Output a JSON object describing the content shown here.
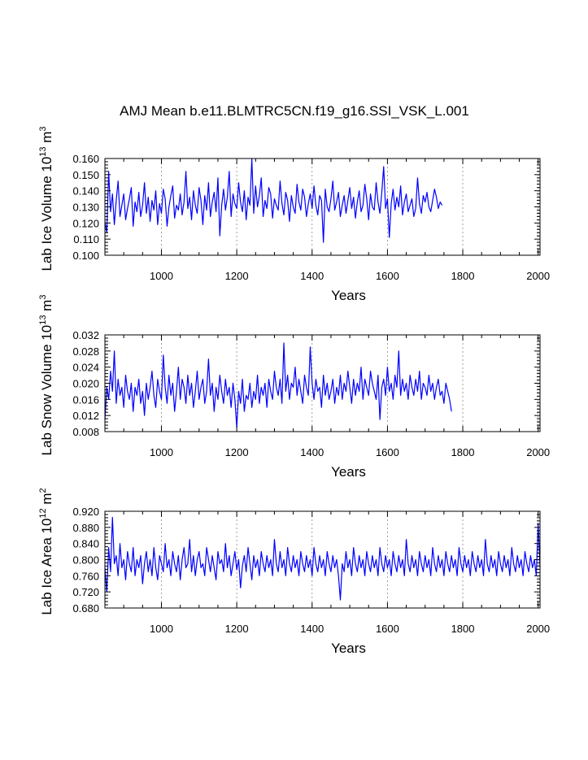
{
  "title": "AMJ Mean b.e11.BLMTRC5CN.f19_g16.SSI_VSK_L.001",
  "line_color": "#0000ff",
  "chart_data": [
    {
      "type": "line",
      "title": "AMJ Mean b.e11.BLMTRC5CN.f19_g16.SSI_VSK_L.001",
      "xlabel": "Years",
      "ylabel": {
        "prefix": "Lab Ice Volume 10",
        "exp": "13",
        "unit": " m",
        "unit_exp": "3"
      },
      "xlim": [
        850,
        2005
      ],
      "ylim": [
        0.1,
        0.16
      ],
      "xticks": [
        "1000",
        "1200",
        "1400",
        "1600",
        "1800",
        "2000"
      ],
      "yticks": [
        "0.100",
        "0.110",
        "0.120",
        "0.130",
        "0.140",
        "0.150",
        "0.160"
      ],
      "grid": "dotted vertical at 200-year intervals",
      "series": [
        {
          "x_start": 850,
          "x_step": 5,
          "values": [
            0.121,
            0.114,
            0.152,
            0.127,
            0.138,
            0.119,
            0.134,
            0.146,
            0.124,
            0.131,
            0.138,
            0.122,
            0.129,
            0.135,
            0.142,
            0.118,
            0.133,
            0.127,
            0.139,
            0.124,
            0.131,
            0.145,
            0.126,
            0.136,
            0.121,
            0.134,
            0.128,
            0.14,
            0.119,
            0.132,
            0.126,
            0.141,
            0.135,
            0.118,
            0.13,
            0.137,
            0.143,
            0.123,
            0.131,
            0.128,
            0.138,
            0.125,
            0.133,
            0.152,
            0.129,
            0.136,
            0.122,
            0.14,
            0.131,
            0.126,
            0.142,
            0.134,
            0.119,
            0.137,
            0.128,
            0.145,
            0.124,
            0.133,
            0.139,
            0.127,
            0.148,
            0.112,
            0.131,
            0.141,
            0.128,
            0.136,
            0.152,
            0.124,
            0.138,
            0.132,
            0.129,
            0.145,
            0.133,
            0.127,
            0.14,
            0.122,
            0.136,
            0.131,
            0.16,
            0.126,
            0.143,
            0.13,
            0.137,
            0.148,
            0.124,
            0.134,
            0.129,
            0.142,
            0.138,
            0.123,
            0.135,
            0.131,
            0.128,
            0.146,
            0.132,
            0.125,
            0.139,
            0.134,
            0.121,
            0.137,
            0.13,
            0.126,
            0.144,
            0.133,
            0.128,
            0.141,
            0.136,
            0.124,
            0.132,
            0.138,
            0.129,
            0.143,
            0.131,
            0.125,
            0.137,
            0.134,
            0.108,
            0.141,
            0.13,
            0.127,
            0.135,
            0.146,
            0.128,
            0.133,
            0.139,
            0.124,
            0.131,
            0.137,
            0.126,
            0.134,
            0.142,
            0.129,
            0.136,
            0.123,
            0.133,
            0.14,
            0.127,
            0.131,
            0.144,
            0.135,
            0.122,
            0.138,
            0.13,
            0.128,
            0.145,
            0.133,
            0.126,
            0.139,
            0.155,
            0.129,
            0.135,
            0.111,
            0.132,
            0.141,
            0.128,
            0.136,
            0.13,
            0.143,
            0.125,
            0.133,
            0.138,
            0.127,
            0.131,
            0.135,
            0.124,
            0.129,
            0.148,
            0.132,
            0.126,
            0.137,
            0.133,
            0.139,
            0.13,
            0.127,
            0.134,
            0.141,
            0.136,
            0.129,
            0.133,
            0.131
          ]
        }
      ]
    },
    {
      "type": "line",
      "xlabel": "Years",
      "ylabel": {
        "prefix": "Lab Snow Volume 10",
        "exp": "13",
        "unit": " m",
        "unit_exp": "3"
      },
      "xlim": [
        850,
        2005
      ],
      "ylim": [
        0.008,
        0.032
      ],
      "xticks": [
        "1000",
        "1200",
        "1400",
        "1600",
        "1800",
        "2000"
      ],
      "yticks": [
        "0.008",
        "0.012",
        "0.016",
        "0.020",
        "0.024",
        "0.028",
        "0.032"
      ],
      "grid": "dotted vertical at 200-year intervals",
      "series": [
        {
          "x_start": 850,
          "x_step": 5,
          "values": [
            0.011,
            0.019,
            0.016,
            0.023,
            0.018,
            0.028,
            0.015,
            0.021,
            0.017,
            0.019,
            0.014,
            0.022,
            0.018,
            0.016,
            0.02,
            0.013,
            0.019,
            0.017,
            0.021,
            0.015,
            0.018,
            0.012,
            0.02,
            0.016,
            0.019,
            0.023,
            0.017,
            0.014,
            0.021,
            0.018,
            0.016,
            0.027,
            0.019,
            0.015,
            0.022,
            0.017,
            0.02,
            0.013,
            0.018,
            0.024,
            0.016,
            0.021,
            0.019,
            0.015,
            0.022,
            0.017,
            0.02,
            0.014,
            0.018,
            0.023,
            0.016,
            0.019,
            0.021,
            0.015,
            0.018,
            0.026,
            0.017,
            0.02,
            0.013,
            0.019,
            0.016,
            0.022,
            0.018,
            0.015,
            0.021,
            0.017,
            0.019,
            0.014,
            0.02,
            0.016,
            0.009,
            0.018,
            0.015,
            0.021,
            0.013,
            0.017,
            0.016,
            0.02,
            0.014,
            0.018,
            0.016,
            0.022,
            0.015,
            0.019,
            0.017,
            0.02,
            0.014,
            0.021,
            0.018,
            0.016,
            0.023,
            0.019,
            0.017,
            0.021,
            0.015,
            0.03,
            0.018,
            0.022,
            0.016,
            0.02,
            0.019,
            0.024,
            0.017,
            0.021,
            0.018,
            0.015,
            0.022,
            0.019,
            0.017,
            0.029,
            0.02,
            0.016,
            0.021,
            0.018,
            0.019,
            0.014,
            0.022,
            0.017,
            0.02,
            0.016,
            0.018,
            0.021,
            0.015,
            0.019,
            0.017,
            0.022,
            0.016,
            0.02,
            0.018,
            0.023,
            0.019,
            0.015,
            0.021,
            0.017,
            0.02,
            0.018,
            0.024,
            0.016,
            0.021,
            0.019,
            0.017,
            0.023,
            0.02,
            0.018,
            0.016,
            0.022,
            0.011,
            0.019,
            0.021,
            0.017,
            0.024,
            0.018,
            0.02,
            0.016,
            0.022,
            0.019,
            0.028,
            0.017,
            0.021,
            0.018,
            0.02,
            0.016,
            0.022,
            0.019,
            0.017,
            0.021,
            0.018,
            0.023,
            0.016,
            0.02,
            0.019,
            0.017,
            0.022,
            0.018,
            0.02,
            0.016,
            0.019,
            0.021,
            0.017,
            0.018,
            0.015,
            0.02,
            0.018,
            0.016,
            0.013
          ]
        }
      ]
    },
    {
      "type": "line",
      "xlabel": "Years",
      "ylabel": {
        "prefix": "Lab Ice Area 10",
        "exp": "12",
        "unit": " m",
        "unit_exp": "2"
      },
      "xlim": [
        850,
        2005
      ],
      "ylim": [
        0.68,
        0.92
      ],
      "xticks": [
        "1000",
        "1200",
        "1400",
        "1600",
        "1800",
        "2000"
      ],
      "yticks": [
        "0.680",
        "0.720",
        "0.760",
        "0.800",
        "0.840",
        "0.880",
        "0.920"
      ],
      "grid": "dotted vertical at 200-year intervals",
      "series": [
        {
          "x_start": 850,
          "x_step": 5,
          "values": [
            0.78,
            0.72,
            0.83,
            0.77,
            0.905,
            0.79,
            0.81,
            0.76,
            0.84,
            0.78,
            0.8,
            0.75,
            0.82,
            0.79,
            0.77,
            0.83,
            0.76,
            0.8,
            0.78,
            0.81,
            0.74,
            0.79,
            0.82,
            0.77,
            0.8,
            0.76,
            0.83,
            0.78,
            0.75,
            0.81,
            0.79,
            0.77,
            0.84,
            0.78,
            0.8,
            0.76,
            0.82,
            0.79,
            0.77,
            0.81,
            0.75,
            0.8,
            0.83,
            0.78,
            0.79,
            0.85,
            0.77,
            0.81,
            0.76,
            0.8,
            0.82,
            0.78,
            0.79,
            0.76,
            0.83,
            0.8,
            0.77,
            0.81,
            0.78,
            0.75,
            0.82,
            0.79,
            0.8,
            0.77,
            0.84,
            0.78,
            0.81,
            0.76,
            0.79,
            0.82,
            0.775,
            0.8,
            0.73,
            0.785,
            0.81,
            0.77,
            0.83,
            0.79,
            0.75,
            0.81,
            0.78,
            0.8,
            0.76,
            0.82,
            0.79,
            0.77,
            0.81,
            0.78,
            0.8,
            0.76,
            0.85,
            0.79,
            0.77,
            0.82,
            0.78,
            0.8,
            0.76,
            0.83,
            0.79,
            0.77,
            0.81,
            0.78,
            0.8,
            0.76,
            0.82,
            0.79,
            0.77,
            0.81,
            0.78,
            0.8,
            0.76,
            0.83,
            0.79,
            0.77,
            0.81,
            0.78,
            0.8,
            0.76,
            0.82,
            0.79,
            0.77,
            0.81,
            0.78,
            0.8,
            0.76,
            0.7,
            0.79,
            0.77,
            0.82,
            0.78,
            0.8,
            0.76,
            0.83,
            0.79,
            0.77,
            0.81,
            0.78,
            0.8,
            0.76,
            0.82,
            0.79,
            0.77,
            0.81,
            0.78,
            0.8,
            0.76,
            0.83,
            0.79,
            0.77,
            0.81,
            0.78,
            0.8,
            0.76,
            0.82,
            0.79,
            0.77,
            0.81,
            0.78,
            0.8,
            0.76,
            0.85,
            0.79,
            0.77,
            0.81,
            0.78,
            0.8,
            0.76,
            0.82,
            0.79,
            0.77,
            0.81,
            0.78,
            0.8,
            0.76,
            0.83,
            0.79,
            0.77,
            0.81,
            0.78,
            0.8,
            0.76,
            0.82,
            0.79,
            0.77,
            0.81,
            0.78,
            0.8,
            0.76,
            0.83,
            0.79,
            0.77,
            0.81,
            0.78,
            0.8,
            0.76,
            0.82,
            0.79,
            0.77,
            0.81,
            0.78,
            0.8,
            0.76,
            0.85,
            0.79,
            0.77,
            0.81,
            0.78,
            0.8,
            0.76,
            0.82,
            0.79,
            0.77,
            0.81,
            0.78,
            0.8,
            0.76,
            0.83,
            0.79,
            0.77,
            0.81,
            0.78,
            0.8,
            0.76,
            0.82,
            0.79,
            0.77,
            0.81,
            0.78,
            0.8,
            0.76,
            0.89,
            0.78
          ]
        }
      ]
    }
  ]
}
